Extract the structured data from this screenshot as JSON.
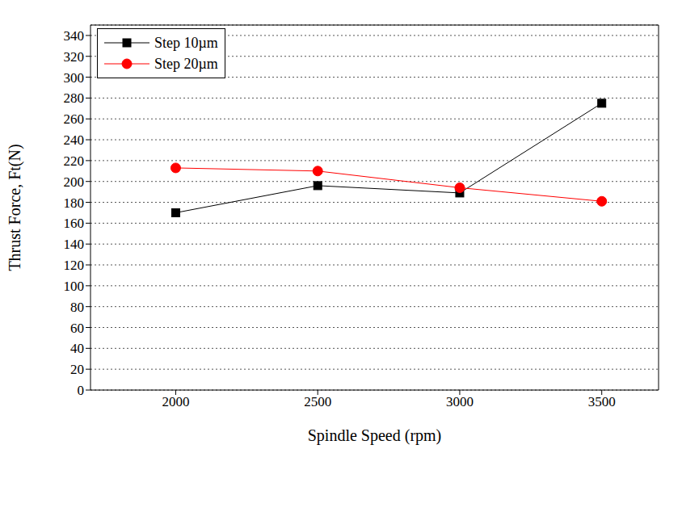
{
  "chart_data": {
    "type": "line",
    "x_label": "Spindle Speed (rpm)",
    "y_label": "Thrust Force, Ft(N)",
    "x": [
      2000,
      2500,
      3000,
      3500
    ],
    "xlim": [
      1700,
      3700
    ],
    "xticks": [
      2000,
      2500,
      3000,
      3500
    ],
    "ylim": [
      0,
      350
    ],
    "yticks": [
      0,
      20,
      40,
      60,
      80,
      100,
      120,
      140,
      160,
      180,
      200,
      220,
      240,
      260,
      280,
      300,
      320,
      340
    ],
    "grid": true,
    "legend": "upper left",
    "series": [
      {
        "name": "Step 10µm",
        "color": "#000000",
        "marker": "square",
        "values": [
          170,
          196,
          189,
          275
        ]
      },
      {
        "name": "Step 20µm",
        "color": "#ff0000",
        "marker": "circle",
        "values": [
          213,
          210,
          194,
          181
        ]
      }
    ]
  }
}
